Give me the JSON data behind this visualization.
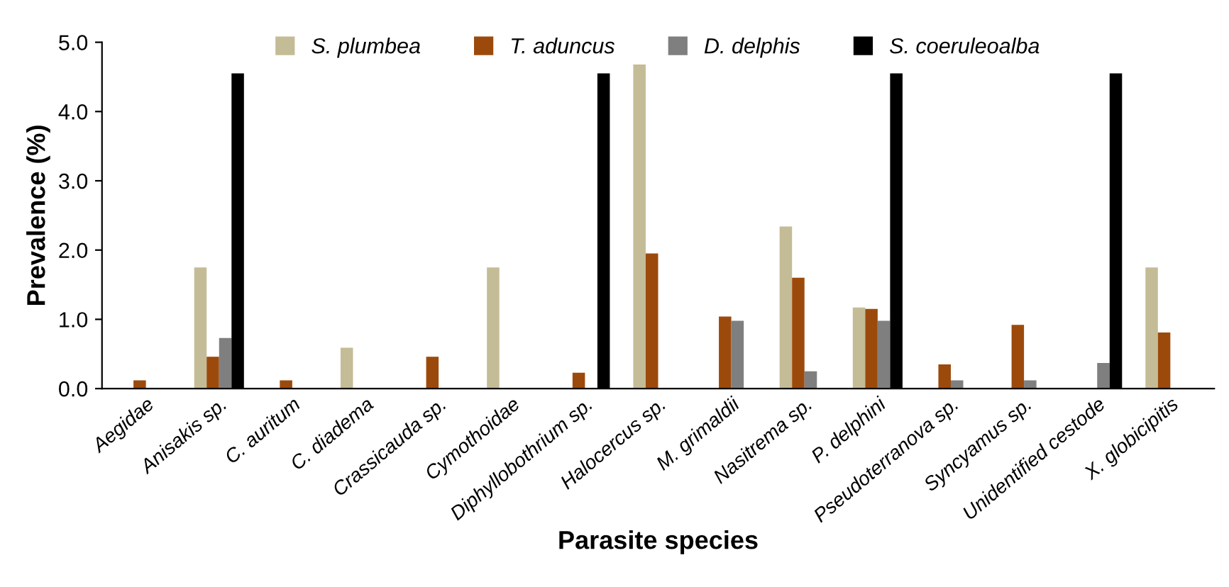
{
  "chart_data": {
    "type": "bar",
    "xlabel": "Parasite species",
    "ylabel": "Prevalence (%)",
    "categories": [
      "Aegidae",
      "Anisakis sp.",
      "C. auritum",
      "C. diadema",
      "Crassicauda sp.",
      "Cymothoidae",
      "Diphyllobothrium sp.",
      "Halocercus sp.",
      "M. grimaldii",
      "Nasitrema sp.",
      "P. delphini",
      "Pseudoterranova sp.",
      "Syncyamus sp.",
      "Unidentified cestode",
      "X. globicipitis"
    ],
    "series": [
      {
        "name": "S. plumbea",
        "color": "#c4bc96",
        "values": [
          0,
          1.75,
          0,
          0.59,
          0,
          1.75,
          0,
          4.68,
          0,
          2.34,
          1.17,
          0,
          0,
          0,
          1.75
        ]
      },
      {
        "name": "T. aduncus",
        "color": "#9c4a0c",
        "values": [
          0.12,
          0.46,
          0.12,
          0,
          0.46,
          0,
          0.23,
          1.95,
          1.04,
          1.6,
          1.15,
          0.35,
          0.92,
          0,
          0.81
        ]
      },
      {
        "name": "D. delphis",
        "color": "#7f7f7f",
        "values": [
          0,
          0.73,
          0,
          0,
          0,
          0,
          0,
          0,
          0.98,
          0.25,
          0.98,
          0.12,
          0.12,
          0.37,
          0
        ]
      },
      {
        "name": "S. coeruleoalba",
        "color": "#000000",
        "values": [
          0,
          4.55,
          0,
          0,
          0,
          0,
          4.55,
          0,
          0,
          0,
          4.55,
          0,
          0,
          4.55,
          0
        ]
      }
    ],
    "ylim": [
      0,
      5
    ],
    "yticks": [
      {
        "value": 0,
        "label": "0.0"
      },
      {
        "value": 1,
        "label": "1.0"
      },
      {
        "value": 2,
        "label": "2.0"
      },
      {
        "value": 3,
        "label": "3.0"
      },
      {
        "value": 4,
        "label": "4.0"
      },
      {
        "value": 5,
        "label": "5.0"
      }
    ],
    "grid": false,
    "legend": "top"
  }
}
